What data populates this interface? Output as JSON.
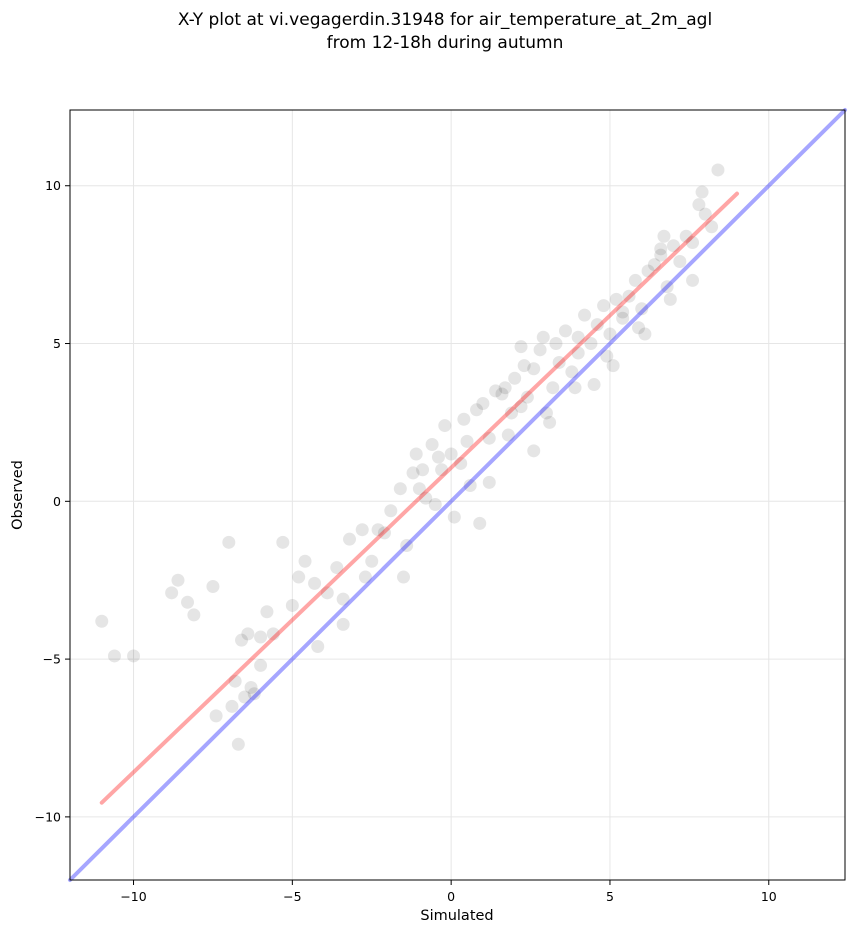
{
  "chart_data": {
    "type": "scatter",
    "title_line1": "X-Y plot at vi.vegagerdin.31948 for air_temperature_at_2m_agl",
    "title_line2": "from 12-18h during autumn",
    "xlabel": "Simulated",
    "ylabel": "Observed",
    "xlim": [
      -12.0,
      12.4
    ],
    "ylim": [
      -12.0,
      12.4
    ],
    "xticks": [
      -10,
      -5,
      0,
      5,
      10
    ],
    "yticks": [
      -10,
      -5,
      0,
      5,
      10
    ],
    "xtick_labels": [
      "−10",
      "−5",
      "0",
      "5",
      "10"
    ],
    "ytick_labels": [
      "−10",
      "−5",
      "0",
      "5",
      "10"
    ],
    "grid": true,
    "point_color": "#000000",
    "point_alpha": 0.1,
    "identity_line": {
      "x": [
        -12.0,
        12.4
      ],
      "y": [
        -12.0,
        12.4
      ],
      "color": "#0000ff",
      "alpha": 0.35
    },
    "fit_line": {
      "x": [
        -11.0,
        9.0
      ],
      "y": [
        -9.55,
        9.75
      ],
      "color": "#ff0000",
      "alpha": 0.35
    },
    "series": [
      {
        "x": [
          -11.0,
          -10.6,
          -10.0,
          -8.8,
          -8.6,
          -8.3,
          -8.1,
          -7.5,
          -7.4,
          -7.0,
          -6.9,
          -6.8,
          -6.7,
          -6.6,
          -6.5,
          -6.4,
          -6.3,
          -6.2,
          -6.0,
          -6.0,
          -5.8,
          -5.6,
          -5.3,
          -5.0,
          -4.8,
          -4.6,
          -4.3,
          -3.9,
          -3.6,
          -3.4,
          -3.2,
          -2.8,
          -2.5,
          -2.3,
          -2.1,
          -1.9,
          -1.6,
          -1.4,
          -1.2,
          -1.1,
          -0.9,
          -0.8,
          -0.6,
          -0.5,
          -0.3,
          -0.2,
          0.0,
          0.1,
          0.3,
          0.4,
          0.6,
          0.8,
          1.0,
          1.2,
          1.4,
          1.6,
          1.7,
          1.8,
          2.0,
          2.2,
          2.4,
          2.6,
          2.8,
          3.0,
          3.2,
          3.4,
          3.6,
          3.8,
          4.0,
          4.2,
          4.4,
          4.6,
          4.8,
          5.0,
          5.2,
          5.4,
          5.6,
          5.8,
          6.0,
          6.2,
          6.4,
          6.6,
          6.8,
          7.0,
          7.2,
          7.4,
          7.6,
          7.8,
          8.0,
          8.2,
          8.4,
          2.3,
          3.1,
          6.6,
          5.4,
          -4.2,
          -3.4,
          -2.7,
          -1.5,
          0.9,
          1.9,
          2.9,
          3.9,
          4.9,
          5.9,
          6.9,
          7.9,
          -0.4,
          1.2,
          2.6,
          3.3,
          4.5,
          5.1,
          6.1,
          6.7,
          7.6,
          4.0,
          0.5,
          -1.0,
          2.2
        ],
        "y": [
          -3.8,
          -4.9,
          -4.9,
          -2.9,
          -2.5,
          -3.2,
          -3.6,
          -2.7,
          -6.8,
          -1.3,
          -6.5,
          -5.7,
          -7.7,
          -4.4,
          -6.2,
          -4.2,
          -5.9,
          -6.1,
          -5.2,
          -4.3,
          -3.5,
          -4.2,
          -1.3,
          -3.3,
          -2.4,
          -1.9,
          -2.6,
          -2.9,
          -2.1,
          -3.9,
          -1.2,
          -0.9,
          -1.9,
          -0.9,
          -1.0,
          -0.3,
          0.4,
          -1.4,
          0.9,
          1.5,
          1.0,
          0.1,
          1.8,
          -0.1,
          1.0,
          2.4,
          1.5,
          -0.5,
          1.2,
          2.6,
          0.5,
          2.9,
          3.1,
          2.0,
          3.5,
          3.4,
          3.6,
          2.1,
          3.9,
          3.0,
          3.3,
          4.2,
          4.8,
          2.8,
          3.6,
          4.4,
          5.4,
          4.1,
          4.7,
          5.9,
          5.0,
          5.6,
          6.2,
          5.3,
          6.4,
          5.8,
          6.5,
          7.0,
          6.1,
          7.3,
          7.5,
          8.0,
          6.8,
          8.1,
          7.6,
          8.4,
          8.2,
          9.4,
          9.1,
          8.7,
          10.5,
          4.3,
          2.5,
          7.8,
          6.0,
          -4.6,
          -3.1,
          -2.4,
          -2.4,
          -0.7,
          2.8,
          5.2,
          3.6,
          4.6,
          5.5,
          6.4,
          9.8,
          1.4,
          0.6,
          1.6,
          5.0,
          3.7,
          4.3,
          5.3,
          8.4,
          7.0,
          5.2,
          1.9,
          0.4,
          4.9
        ]
      }
    ]
  }
}
